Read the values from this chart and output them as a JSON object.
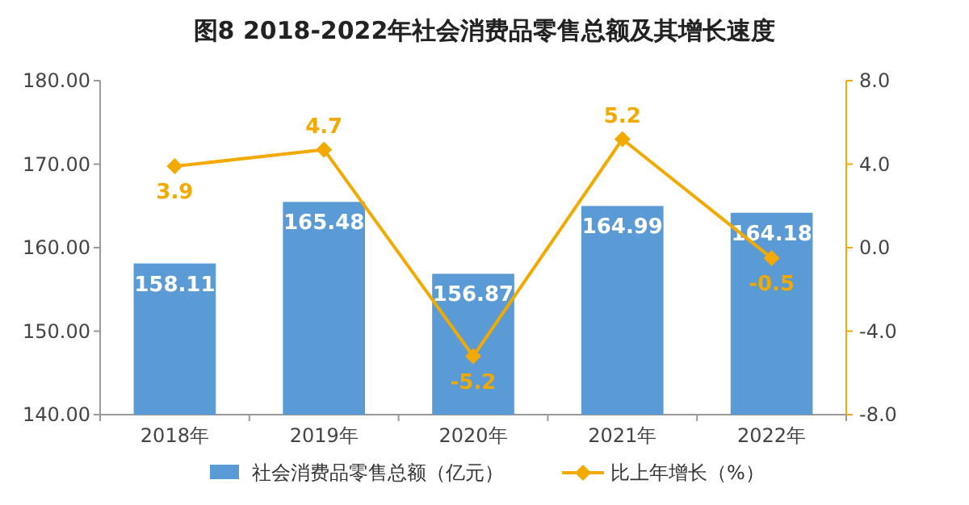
{
  "chart_data": {
    "type": "bar",
    "title": "图8 2018-2022年社会消费品零售总额及其增长速度",
    "categories": [
      "2018年",
      "2019年",
      "2020年",
      "2021年",
      "2022年"
    ],
    "series": [
      {
        "name": "社会消费品零售总额（亿元）",
        "color": "#5b9bd5",
        "values": [
          158.11,
          165.48,
          156.87,
          164.99,
          164.18
        ]
      },
      {
        "name": "比上年增长（%）",
        "type": "line",
        "axis": "y2",
        "color": "#f2a900",
        "marker": "diamond",
        "values": [
          3.9,
          4.7,
          -5.2,
          5.2,
          -0.5
        ]
      }
    ],
    "ylim": [
      140,
      180
    ],
    "yticks": [
      {
        "value": 140,
        "label": "140.00"
      },
      {
        "value": 150,
        "label": "150.00"
      },
      {
        "value": 160,
        "label": "160.00"
      },
      {
        "value": 170,
        "label": "170.00"
      },
      {
        "value": 180,
        "label": "180.00"
      }
    ],
    "y2lim": [
      -8,
      8
    ],
    "y2ticks": [
      {
        "value": -8,
        "label": "-8.0"
      },
      {
        "value": -4,
        "label": "-4.0"
      },
      {
        "value": 0,
        "label": "0.0"
      },
      {
        "value": 4,
        "label": "4.0"
      },
      {
        "value": 8,
        "label": "8.0"
      }
    ],
    "data_labels": true,
    "legend": "bottom"
  }
}
